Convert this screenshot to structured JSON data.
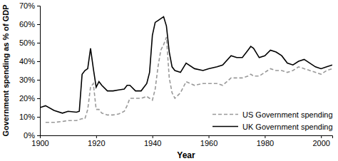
{
  "chart_data": {
    "type": "line",
    "x_label": "Year",
    "y_label": "Government spending as % of GDP",
    "x": [
      1900,
      1902,
      1905,
      1908,
      1910,
      1913,
      1914,
      1915,
      1916,
      1917,
      1918,
      1919,
      1920,
      1921,
      1922,
      1924,
      1926,
      1928,
      1930,
      1931,
      1932,
      1934,
      1936,
      1938,
      1939,
      1940,
      1941,
      1942,
      1943,
      1944,
      1945,
      1946,
      1947,
      1948,
      1950,
      1952,
      1955,
      1958,
      1960,
      1963,
      1965,
      1968,
      1970,
      1972,
      1974,
      1975,
      1976,
      1978,
      1980,
      1982,
      1984,
      1986,
      1988,
      1990,
      1992,
      1994,
      1996,
      1998,
      2000,
      2002,
      2004
    ],
    "series": [
      {
        "name": "US Government spending",
        "color": "#999999",
        "line_style": "dashed",
        "values": [
          null,
          7,
          7,
          7.5,
          8,
          8,
          8.5,
          9,
          9,
          14,
          26,
          28,
          14,
          14,
          12,
          11,
          11,
          11.5,
          13,
          16,
          20,
          20,
          20,
          21,
          20,
          19,
          25,
          37,
          46,
          49,
          53,
          31,
          23,
          20,
          23,
          29,
          27,
          28,
          28,
          28,
          27,
          31,
          31,
          31,
          32,
          33,
          32,
          32,
          34,
          36,
          35,
          35,
          34,
          35,
          37,
          36,
          35,
          34,
          33,
          35,
          36
        ]
      },
      {
        "name": "UK Government spending",
        "color": "#000000",
        "line_style": "solid",
        "values": [
          15,
          16,
          13.5,
          12,
          13,
          12.5,
          13,
          33,
          35,
          36,
          47,
          36,
          26,
          29,
          27,
          24,
          24,
          24.5,
          25,
          27,
          27,
          24,
          24,
          28,
          34,
          54,
          61,
          62,
          63,
          64,
          59,
          45,
          37,
          35,
          34,
          39,
          36,
          35,
          36,
          37,
          38,
          43,
          42,
          42,
          46,
          48,
          47,
          42,
          43,
          46,
          45,
          43,
          39,
          38,
          40,
          41,
          39,
          37,
          36,
          37,
          38
        ]
      }
    ],
    "xlim": [
      1900,
      2004
    ],
    "xticks": [
      1900,
      1920,
      1940,
      1960,
      1980,
      2000
    ],
    "ylim": [
      0,
      70
    ],
    "yticks": [
      {
        "value": 0,
        "label": "0%"
      },
      {
        "value": 10,
        "label": "10%"
      },
      {
        "value": 20,
        "label": "20%"
      },
      {
        "value": 30,
        "label": "30%"
      },
      {
        "value": 40,
        "label": "40%"
      },
      {
        "value": 50,
        "label": "50%"
      },
      {
        "value": 60,
        "label": "60%"
      },
      {
        "value": 70,
        "label": "70%"
      }
    ],
    "grid": false,
    "legend": "lower right"
  }
}
